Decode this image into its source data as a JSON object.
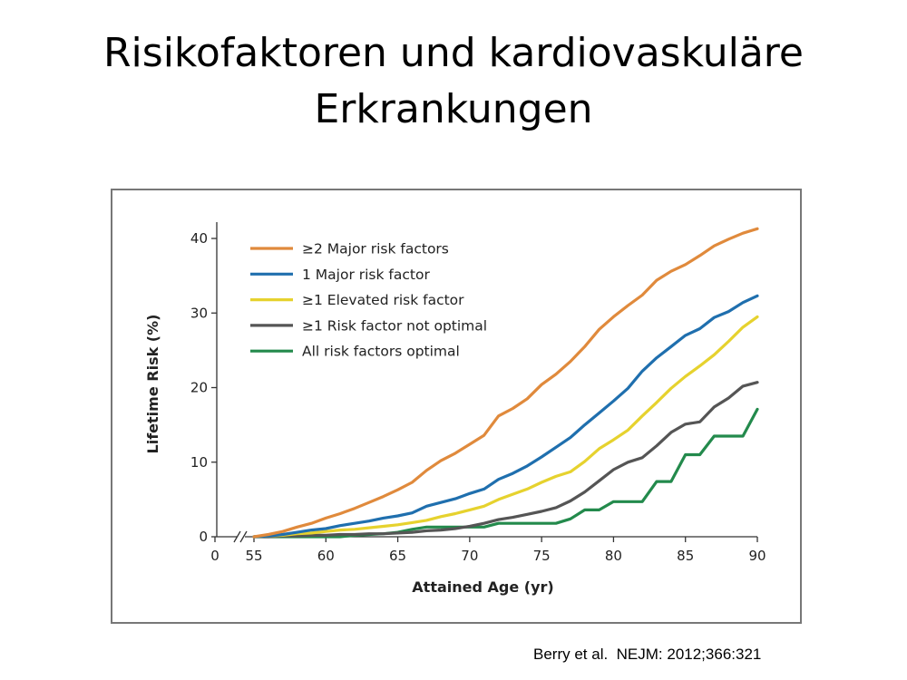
{
  "slide": {
    "title_line1": "Risikofaktoren und kardiovaskuläre",
    "title_line2": "Erkrankungen",
    "citation": "Berry et al.  NEJM: 2012;366:321"
  },
  "chart_data": {
    "type": "line",
    "title": "",
    "xlabel": "Attained Age (yr)",
    "ylabel": "Lifetime Risk (%)",
    "xlim": [
      55,
      90
    ],
    "ylim": [
      0,
      42
    ],
    "x_ticks": [
      0,
      55,
      60,
      65,
      70,
      75,
      80,
      85,
      90
    ],
    "y_ticks": [
      0,
      10,
      20,
      30,
      40
    ],
    "axis_break": true,
    "grid": false,
    "legend_position": "top-left",
    "series": [
      {
        "name": "≥2 Major risk factors",
        "color": "#e08a3c",
        "x": [
          55,
          56,
          57,
          58,
          59,
          60,
          61,
          62,
          63,
          64,
          65,
          66,
          67,
          68,
          69,
          70,
          71,
          72,
          73,
          74,
          75,
          76,
          77,
          78,
          79,
          80,
          81,
          82,
          83,
          84,
          85,
          86,
          87,
          88,
          89,
          90
        ],
        "y": [
          0,
          0.3,
          0.7,
          1.3,
          1.8,
          2.5,
          3.1,
          3.8,
          4.6,
          5.4,
          6.3,
          7.3,
          8.9,
          10.2,
          11.2,
          12.4,
          13.6,
          16.2,
          17.2,
          18.5,
          20.4,
          21.8,
          23.5,
          25.5,
          27.8,
          29.5,
          31,
          32.4,
          34.4,
          35.6,
          36.5,
          37.7,
          39,
          39.9,
          40.7,
          41.3
        ]
      },
      {
        "name": "1 Major risk factor",
        "color": "#1f6fae",
        "x": [
          55,
          56,
          57,
          58,
          59,
          60,
          61,
          62,
          63,
          64,
          65,
          66,
          67,
          68,
          69,
          70,
          71,
          72,
          73,
          74,
          75,
          76,
          77,
          78,
          79,
          80,
          81,
          82,
          83,
          84,
          85,
          86,
          87,
          88,
          89,
          90
        ],
        "y": [
          0,
          0.1,
          0.3,
          0.6,
          0.9,
          1.1,
          1.5,
          1.8,
          2.1,
          2.5,
          2.8,
          3.2,
          4.1,
          4.6,
          5.1,
          5.8,
          6.4,
          7.7,
          8.5,
          9.5,
          10.7,
          12,
          13.3,
          15,
          16.6,
          18.2,
          19.9,
          22.2,
          24,
          25.5,
          27,
          27.9,
          29.4,
          30.2,
          31.4,
          32.3
        ]
      },
      {
        "name": "≥1 Elevated risk factor",
        "color": "#e6d22e",
        "x": [
          55,
          56,
          57,
          58,
          59,
          60,
          61,
          62,
          63,
          64,
          65,
          66,
          67,
          68,
          69,
          70,
          71,
          72,
          73,
          74,
          75,
          76,
          77,
          78,
          79,
          80,
          81,
          82,
          83,
          84,
          85,
          86,
          87,
          88,
          89,
          90
        ],
        "y": [
          0,
          0.1,
          0.2,
          0.4,
          0.5,
          0.7,
          0.9,
          1,
          1.2,
          1.4,
          1.6,
          1.9,
          2.2,
          2.7,
          3.1,
          3.6,
          4.1,
          5,
          5.7,
          6.4,
          7.3,
          8.1,
          8.7,
          10.1,
          11.8,
          13,
          14.3,
          16.2,
          18,
          19.9,
          21.5,
          22.9,
          24.4,
          26.2,
          28.1,
          29.5
        ]
      },
      {
        "name": "≥1 Risk factor not optimal",
        "color": "#555555",
        "x": [
          55,
          56,
          57,
          58,
          59,
          60,
          61,
          62,
          63,
          64,
          65,
          66,
          67,
          68,
          69,
          70,
          71,
          72,
          73,
          74,
          75,
          76,
          77,
          78,
          79,
          80,
          81,
          82,
          83,
          84,
          85,
          86,
          87,
          88,
          89,
          90
        ],
        "y": [
          0,
          0,
          0.1,
          0.1,
          0.2,
          0.2,
          0.3,
          0.3,
          0.4,
          0.4,
          0.5,
          0.6,
          0.8,
          0.9,
          1.1,
          1.4,
          1.8,
          2.3,
          2.6,
          3,
          3.4,
          3.9,
          4.8,
          6,
          7.5,
          9,
          10,
          10.6,
          12.2,
          14,
          15.1,
          15.4,
          17.4,
          18.6,
          20.2,
          20.7
        ]
      },
      {
        "name": "All risk factors optimal",
        "color": "#238a4c",
        "x": [
          55,
          60,
          61,
          62,
          63,
          64,
          65,
          66,
          67,
          68,
          69,
          70,
          71,
          72,
          73,
          74,
          75,
          76,
          77,
          78,
          79,
          80,
          81,
          82,
          83,
          84,
          85,
          86,
          87,
          88,
          89,
          90
        ],
        "y": [
          0,
          0,
          0,
          0.2,
          0.3,
          0.4,
          0.6,
          1,
          1.3,
          1.3,
          1.3,
          1.3,
          1.3,
          1.8,
          1.8,
          1.8,
          1.8,
          1.8,
          2.4,
          3.6,
          3.6,
          4.7,
          4.7,
          4.7,
          7.4,
          7.4,
          11,
          11,
          13.5,
          13.5,
          13.5,
          17.1
        ]
      }
    ]
  }
}
